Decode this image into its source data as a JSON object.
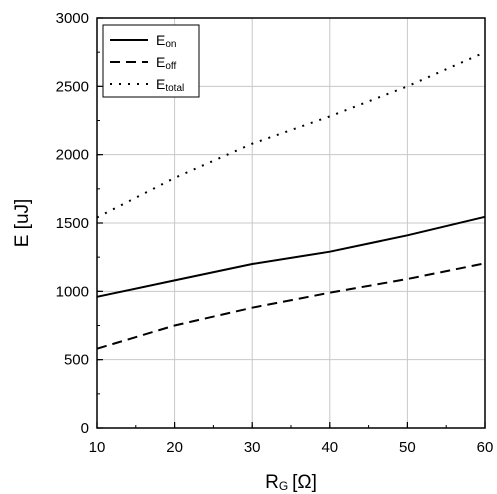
{
  "chart_data": {
    "type": "line",
    "xlabel": {
      "main": "R",
      "sub": "G",
      "unit": "[Ω]"
    },
    "ylabel": "E [uJ]",
    "xlim": [
      10,
      60
    ],
    "ylim": [
      0,
      3000
    ],
    "x_ticks": [
      "10",
      "20",
      "30",
      "40",
      "50",
      "60"
    ],
    "y_ticks": [
      "0",
      "500",
      "1000",
      "1500",
      "2000",
      "2500",
      "3000"
    ],
    "x_minor_step": 5,
    "y_minor_step": 250,
    "grid": true,
    "legend_position": "top-left",
    "series": [
      {
        "name": "E",
        "sub": "on",
        "dash": "solid",
        "color": "#000000",
        "x": [
          10,
          20,
          30,
          40,
          50,
          60
        ],
        "y": [
          960,
          1080,
          1200,
          1290,
          1410,
          1545
        ]
      },
      {
        "name": "E",
        "sub": "off",
        "dash": "dashed",
        "color": "#000000",
        "x": [
          10,
          20,
          30,
          40,
          50,
          60
        ],
        "y": [
          580,
          750,
          880,
          990,
          1090,
          1205
        ]
      },
      {
        "name": "E",
        "sub": "total",
        "dash": "dotted",
        "color": "#000000",
        "x": [
          10,
          20,
          30,
          40,
          50,
          60
        ],
        "y": [
          1540,
          1830,
          2080,
          2280,
          2500,
          2750
        ]
      }
    ]
  }
}
